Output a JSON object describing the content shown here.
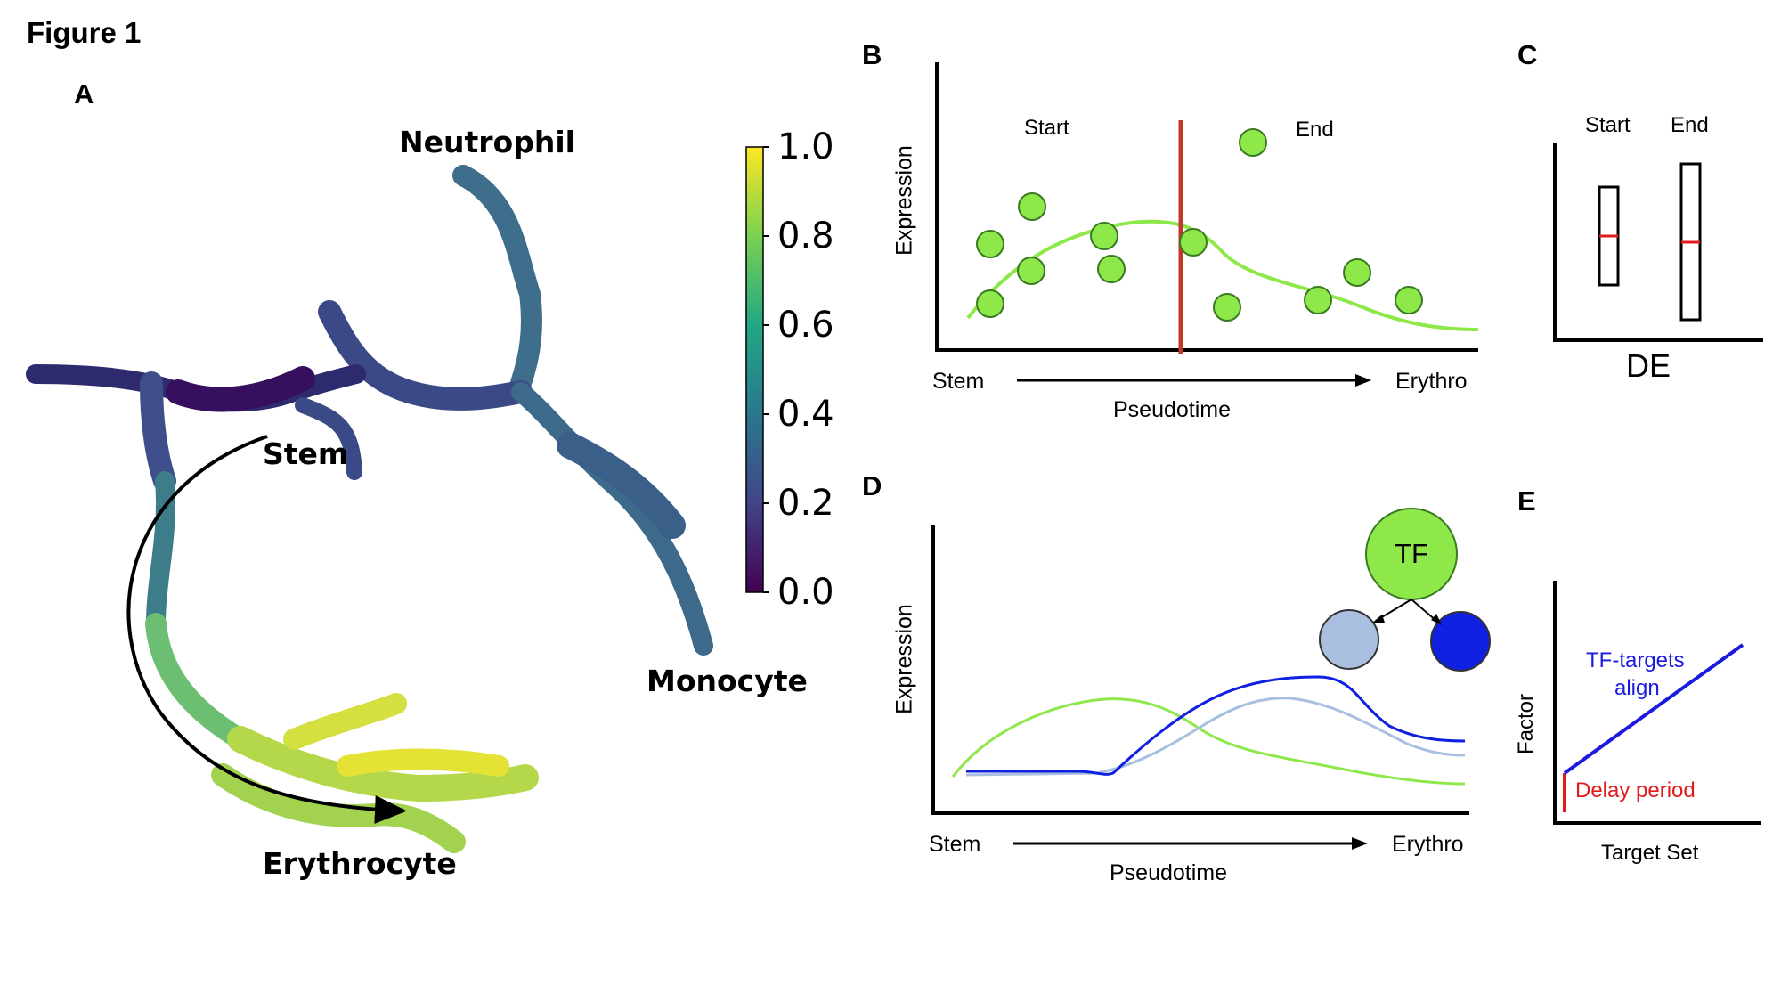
{
  "figure_title": "Figure 1",
  "panels": {
    "A": {
      "label": "A",
      "cell_types": {
        "neutrophil": "Neutrophil",
        "stem": "Stem",
        "monocyte": "Monocyte",
        "erythrocyte": "Erythrocyte"
      },
      "colorbar": {
        "ticks": [
          "1.0",
          "0.8",
          "0.6",
          "0.4",
          "0.2",
          "0.0"
        ],
        "range": [
          0.0,
          1.0
        ],
        "colormap": "viridis"
      }
    },
    "B": {
      "label": "B",
      "ylabel": "Expression",
      "xlabel": "Pseudotime",
      "x_start": "Stem",
      "x_end": "Erythro",
      "region_start": "Start",
      "region_end": "End",
      "curve_color": "#8ee84a",
      "divider_color": "#c0392b"
    },
    "C": {
      "label": "C",
      "box_labels": [
        "Start",
        "End"
      ],
      "xlabel": "DE",
      "median_color": "#e01b1b"
    },
    "D": {
      "label": "D",
      "ylabel": "Expression",
      "xlabel": "Pseudotime",
      "x_start": "Stem",
      "x_end": "Erythro",
      "tf_label": "TF",
      "colors": {
        "tf": "#8ee84a",
        "target_light": "#a9bfdf",
        "target_dark": "#1020e0"
      }
    },
    "E": {
      "label": "E",
      "ylabel": "Factor",
      "xlabel": "Target Set",
      "annot_align_1": "TF-targets",
      "annot_align_2": "align",
      "annot_delay": "Delay period",
      "colors": {
        "align": "#1a1ae0",
        "delay": "#e01b1b"
      }
    }
  }
}
